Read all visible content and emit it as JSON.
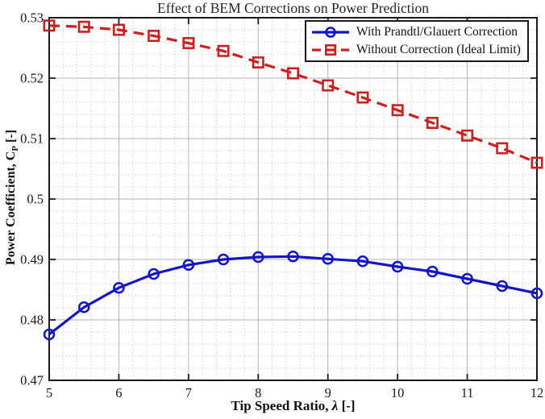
{
  "chart_data": {
    "type": "line",
    "title": "Effect of BEM Corrections on Power Prediction",
    "xlabel": "Tip Speed Ratio, λ [-]",
    "xlabel_parts": {
      "pre": "Tip Speed Ratio, ",
      "sym": "λ",
      "unit": " [-]"
    },
    "ylabel": "Power Coefficient, C_P [-]",
    "ylabel_parts": {
      "pre": "Power Coefficient, C",
      "sub": "P",
      "unit": " [-]"
    },
    "xlim": [
      5,
      12
    ],
    "ylim": [
      0.47,
      0.53
    ],
    "xticks": [
      5,
      6,
      7,
      8,
      9,
      10,
      11,
      12
    ],
    "xtick_labels": [
      "5",
      "6",
      "7",
      "8",
      "9",
      "10",
      "11",
      "12"
    ],
    "yticks": [
      0.47,
      0.48,
      0.49,
      0.5,
      0.51,
      0.52,
      0.53
    ],
    "ytick_labels": [
      "0.47",
      "0.48",
      "0.49",
      "0.5",
      "0.51",
      "0.52",
      "0.53"
    ],
    "grid": true,
    "minor_grid": true,
    "minor_step_x": 0.2,
    "minor_step_y": 0.002,
    "legend_position": "top-right-inside",
    "x": [
      5,
      5.5,
      6,
      6.5,
      7,
      7.5,
      8,
      8.5,
      9,
      9.5,
      10,
      10.5,
      11,
      11.5,
      12
    ],
    "series": [
      {
        "name": "With Prandtl/Glauert Correction",
        "color": "#1414c8",
        "line": "solid",
        "marker": "circle",
        "values": [
          0.4776,
          0.4821,
          0.4853,
          0.4876,
          0.4891,
          0.49,
          0.4904,
          0.4905,
          0.4901,
          0.4897,
          0.4888,
          0.488,
          0.4868,
          0.4856,
          0.4844
        ]
      },
      {
        "name": "Without Correction (Ideal Limit)",
        "color": "#cc2020",
        "line": "dashed",
        "marker": "square",
        "values": [
          0.5287,
          0.5285,
          0.528,
          0.527,
          0.5258,
          0.5245,
          0.5226,
          0.5208,
          0.5188,
          0.5168,
          0.5147,
          0.5126,
          0.5105,
          0.5084,
          0.506
        ]
      }
    ],
    "colors": {
      "axis": "#1a1a1a",
      "grid_major": "#b3b3b3",
      "grid_minor": "#cfcfcf",
      "tick_label": "#1a1a1a",
      "background": "#ffffff"
    }
  }
}
